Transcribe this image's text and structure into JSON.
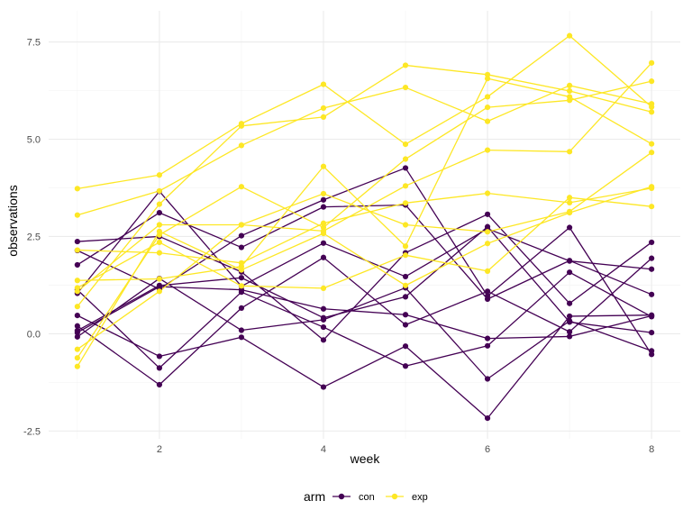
{
  "chart_data": {
    "type": "line",
    "xlabel": "week",
    "ylabel": "observations",
    "xlim": [
      0.65,
      8.35
    ],
    "ylim": [
      -2.7,
      8.3
    ],
    "x_ticks": [
      2,
      4,
      6,
      8
    ],
    "y_ticks": [
      -2.5,
      0.0,
      2.5,
      5.0,
      7.5
    ],
    "x_tick_labels": [
      "2",
      "4",
      "6",
      "8"
    ],
    "y_tick_labels": [
      "-2.5",
      "0.0",
      "2.5",
      "5.0",
      "7.5"
    ],
    "grid": true,
    "background": "#ffffff",
    "legend": {
      "title": "arm",
      "placement": "bottom",
      "entries": [
        {
          "label": "con",
          "color": "#440154"
        },
        {
          "label": "exp",
          "color": "#FDE725"
        }
      ]
    },
    "x": [
      1,
      2,
      3,
      4,
      5,
      6,
      7,
      8
    ],
    "series": [
      {
        "group": "con",
        "color": "#440154",
        "values": [
          0.2,
          -1.31,
          0.66,
          1.96,
          0.23,
          1.09,
          0.05,
          1.94
        ]
      },
      {
        "group": "con",
        "color": "#440154",
        "values": [
          1.13,
          -0.88,
          1.07,
          0.17,
          -0.83,
          -0.31,
          1.58,
          0.44
        ]
      },
      {
        "group": "con",
        "color": "#440154",
        "values": [
          1.77,
          3.11,
          2.22,
          3.26,
          3.31,
          0.89,
          1.88,
          1.01
        ]
      },
      {
        "group": "con",
        "color": "#440154",
        "values": [
          1.04,
          3.66,
          1.22,
          2.33,
          1.47,
          2.7,
          1.87,
          1.66
        ]
      },
      {
        "group": "con",
        "color": "#440154",
        "values": [
          0.47,
          -0.58,
          -0.09,
          -1.37,
          -0.32,
          -2.17,
          0.45,
          0.48
        ]
      },
      {
        "group": "con",
        "color": "#440154",
        "values": [
          2.37,
          2.5,
          1.59,
          -0.16,
          2.08,
          3.07,
          0.78,
          2.35
        ]
      },
      {
        "group": "con",
        "color": "#440154",
        "values": [
          0.03,
          1.21,
          1.13,
          0.64,
          0.49,
          -0.12,
          -0.07,
          0.46
        ]
      },
      {
        "group": "con",
        "color": "#440154",
        "values": [
          -0.08,
          1.42,
          0.09,
          0.36,
          1.18,
          -1.16,
          0.33,
          -0.44
        ]
      },
      {
        "group": "con",
        "color": "#440154",
        "values": [
          0.08,
          1.24,
          1.44,
          0.41,
          0.95,
          2.75,
          0.3,
          0.03
        ]
      },
      {
        "group": "con",
        "color": "#440154",
        "values": [
          2.14,
          1.15,
          2.52,
          3.44,
          4.26,
          0.97,
          2.73,
          -0.53
        ]
      },
      {
        "group": "exp",
        "color": "#FDE725",
        "values": [
          3.05,
          3.67,
          4.84,
          5.8,
          6.33,
          5.46,
          6.38,
          5.91
        ]
      },
      {
        "group": "exp",
        "color": "#FDE725",
        "values": [
          -0.84,
          2.63,
          1.64,
          2.58,
          1.24,
          2.32,
          3.11,
          3.78
        ]
      },
      {
        "group": "exp",
        "color": "#FDE725",
        "values": [
          2.15,
          2.08,
          1.82,
          2.84,
          3.36,
          3.61,
          3.37,
          3.74
        ]
      },
      {
        "group": "exp",
        "color": "#FDE725",
        "values": [
          -0.62,
          2.54,
          3.78,
          2.73,
          4.49,
          5.82,
          6.0,
          6.49
        ]
      },
      {
        "group": "exp",
        "color": "#FDE725",
        "values": [
          0.7,
          3.33,
          5.34,
          5.57,
          6.9,
          6.66,
          6.24,
          5.7
        ]
      },
      {
        "group": "exp",
        "color": "#FDE725",
        "values": [
          3.73,
          4.08,
          5.4,
          6.41,
          4.87,
          6.09,
          7.66,
          5.83
        ]
      },
      {
        "group": "exp",
        "color": "#FDE725",
        "values": [
          1.18,
          2.35,
          1.23,
          1.17,
          2.02,
          1.61,
          3.5,
          3.27
        ]
      },
      {
        "group": "exp",
        "color": "#FDE725",
        "values": [
          1.37,
          1.41,
          1.73,
          4.3,
          2.25,
          6.56,
          6.09,
          4.88
        ]
      },
      {
        "group": "exp",
        "color": "#FDE725",
        "values": [
          -0.4,
          1.09,
          2.8,
          2.64,
          3.8,
          4.72,
          4.68,
          6.96
        ]
      },
      {
        "group": "exp",
        "color": "#FDE725",
        "values": [
          1.09,
          2.8,
          2.8,
          3.6,
          2.8,
          2.62,
          3.14,
          4.66
        ]
      }
    ]
  }
}
